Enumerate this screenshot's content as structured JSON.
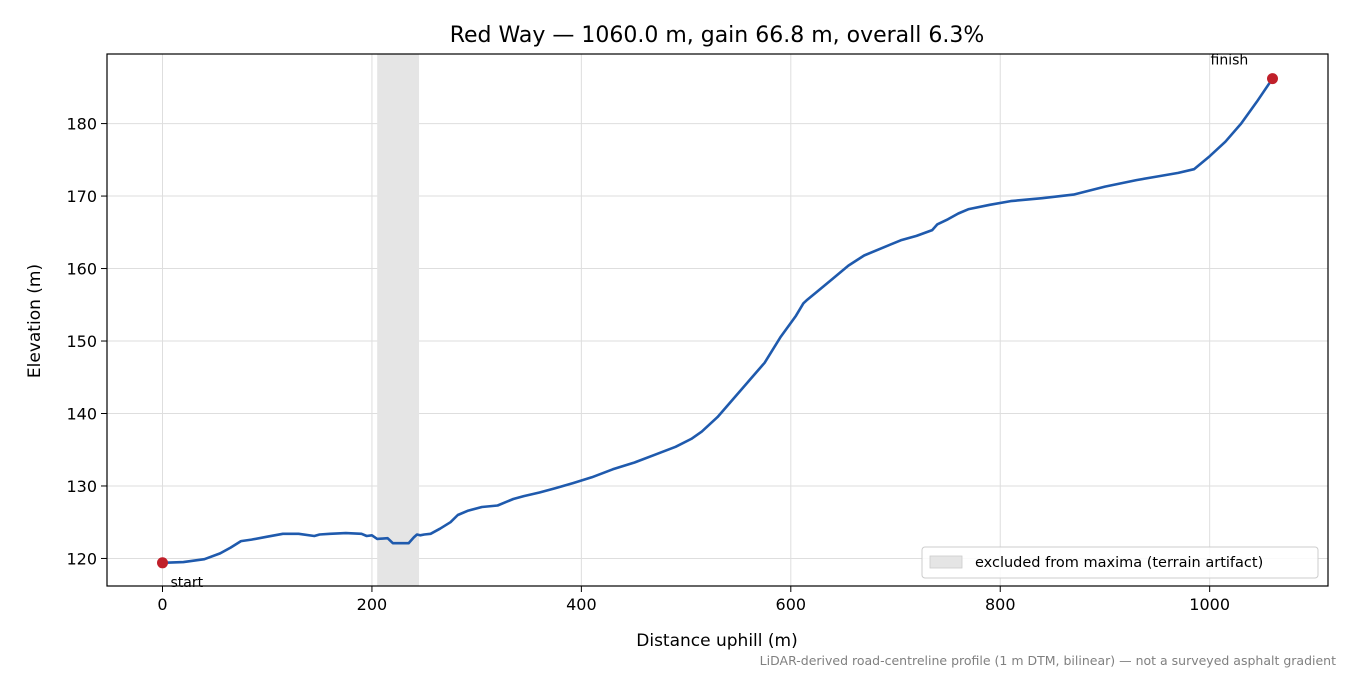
{
  "chart_data": {
    "type": "line",
    "title": "Red Way — 1060.0 m, gain 66.8 m, overall 6.3%",
    "xlabel": "Distance uphill (m)",
    "ylabel": "Elevation (m)",
    "xlim": [
      -53,
      1113
    ],
    "ylim": [
      116.2,
      189.6
    ],
    "xticks": [
      0,
      200,
      400,
      600,
      800,
      1000
    ],
    "yticks": [
      120,
      130,
      140,
      150,
      160,
      170,
      180
    ],
    "grid": true,
    "line_color": "#1f5aad",
    "marker_color": "#c0202a",
    "excluded_band": {
      "x_start": 205,
      "x_end": 245,
      "label": "excluded from maxima (terrain artifact)",
      "color": "#e5e5e5"
    },
    "legend_position": "lower-right",
    "start_marker": {
      "x": 0,
      "y": 119.4,
      "label": "start"
    },
    "finish_marker": {
      "x": 1060,
      "y": 186.2,
      "label": "finish"
    },
    "footnote": "LiDAR-derived road-centreline profile (1 m DTM, bilinear) — not a surveyed asphalt gradient",
    "series": [
      {
        "x": [
          0,
          20,
          40,
          55,
          65,
          75,
          85,
          100,
          115,
          130,
          145,
          150,
          160,
          175,
          190,
          195,
          200,
          205,
          215,
          220,
          235,
          240,
          243,
          246,
          250,
          256,
          265,
          275,
          282,
          292,
          305,
          320,
          335,
          345,
          360,
          375,
          392,
          410,
          430,
          450,
          470,
          490,
          505,
          515,
          530,
          545,
          560,
          575,
          590,
          605,
          612,
          615,
          625,
          640,
          655,
          670,
          690,
          705,
          720,
          735,
          740,
          750,
          760,
          770,
          790,
          810,
          840,
          870,
          900,
          930,
          950,
          970,
          985,
          1000,
          1015,
          1030,
          1045,
          1060
        ],
        "y": [
          119.4,
          119.5,
          119.9,
          120.7,
          121.5,
          122.4,
          122.6,
          123.0,
          123.4,
          123.4,
          123.1,
          123.3,
          123.4,
          123.5,
          123.4,
          123.1,
          123.2,
          122.7,
          122.8,
          122.1,
          122.1,
          122.9,
          123.3,
          123.2,
          123.3,
          123.4,
          124.1,
          125.0,
          126.0,
          126.6,
          127.1,
          127.3,
          128.2,
          128.6,
          129.1,
          129.7,
          130.4,
          131.2,
          132.3,
          133.2,
          134.3,
          135.4,
          136.5,
          137.5,
          139.5,
          142.0,
          144.5,
          147.0,
          150.5,
          153.5,
          155.2,
          155.6,
          156.8,
          158.6,
          160.4,
          161.8,
          163.0,
          163.9,
          164.5,
          165.3,
          166.1,
          166.8,
          167.6,
          168.2,
          168.8,
          169.3,
          169.7,
          170.2,
          171.3,
          172.2,
          172.7,
          173.2,
          173.7,
          175.5,
          177.5,
          180.0,
          183.0,
          186.2
        ]
      }
    ]
  }
}
